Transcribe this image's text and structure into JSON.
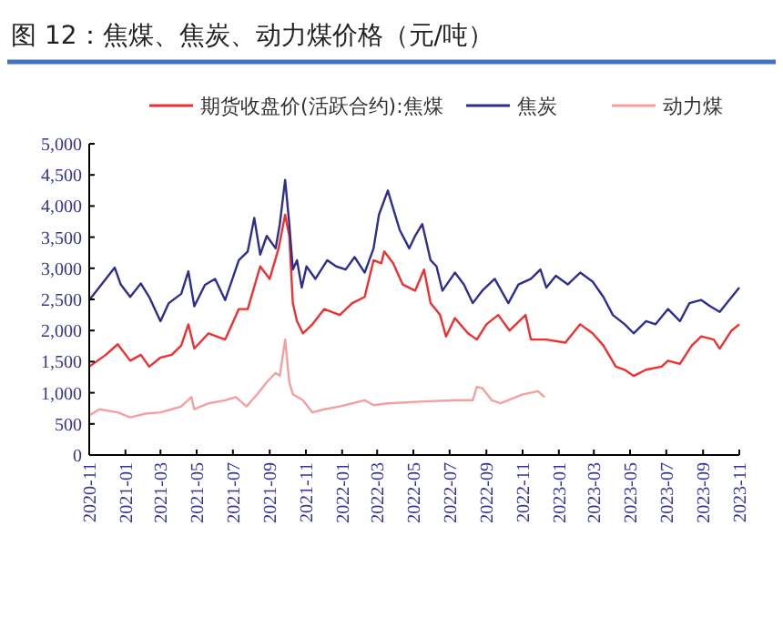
{
  "chart_data": {
    "type": "line",
    "title": "图 12：焦煤、焦炭、动力煤价格（元/吨）",
    "legend": "top",
    "grid": false,
    "line_style": "solid",
    "xlim": [
      "2020-11",
      "2023-11"
    ],
    "xticks": [
      "2020-11",
      "2021-01",
      "2021-03",
      "2021-05",
      "2021-07",
      "2021-09",
      "2021-11",
      "2022-01",
      "2022-03",
      "2022-05",
      "2022-07",
      "2022-09",
      "2022-11",
      "2023-01",
      "2023-03",
      "2023-05",
      "2023-07",
      "2023-09",
      "2023-11"
    ],
    "ylim": [
      0,
      5000
    ],
    "yticks": [
      {
        "value": 0,
        "label": "0"
      },
      {
        "value": 500,
        "label": "500"
      },
      {
        "value": 1000,
        "label": "1,000"
      },
      {
        "value": 1500,
        "label": "1,500"
      },
      {
        "value": 2000,
        "label": "2,000"
      },
      {
        "value": 2500,
        "label": "2,500"
      },
      {
        "value": 3000,
        "label": "3,000"
      },
      {
        "value": 3500,
        "label": "3,500"
      },
      {
        "value": 4000,
        "label": "4,000"
      },
      {
        "value": 4500,
        "label": "4,500"
      },
      {
        "value": 5000,
        "label": "5,000"
      }
    ],
    "series": [
      {
        "name": "期货收盘价(活跃合约):焦煤",
        "color": "#f03030",
        "x": [
          "2020-11-01",
          "2020-11-29",
          "2020-12-19",
          "2021-01-09",
          "2021-01-27",
          "2021-02-10",
          "2021-03-01",
          "2021-03-20",
          "2021-04-05",
          "2021-04-17",
          "2021-04-27",
          "2021-05-21",
          "2021-06-18",
          "2021-07-11",
          "2021-07-26",
          "2021-08-16",
          "2021-09-01",
          "2021-09-16",
          "2021-09-27",
          "2021-10-04",
          "2021-10-10",
          "2021-10-17",
          "2021-10-27",
          "2021-11-12",
          "2021-12-02",
          "2021-12-28",
          "2022-01-18",
          "2022-02-08",
          "2022-02-23",
          "2022-03-08",
          "2022-03-13",
          "2022-03-28",
          "2022-04-13",
          "2022-05-04",
          "2022-05-19",
          "2022-05-30",
          "2022-06-15",
          "2022-06-25",
          "2022-07-10",
          "2022-08-01",
          "2022-08-16",
          "2022-09-01",
          "2022-09-21",
          "2022-10-10",
          "2022-11-06",
          "2022-11-15",
          "2022-12-11",
          "2023-01-12",
          "2023-02-06",
          "2023-02-27",
          "2023-03-17",
          "2023-04-07",
          "2023-04-22",
          "2023-05-07",
          "2023-05-28",
          "2023-06-23",
          "2023-07-04",
          "2023-07-24",
          "2023-08-13",
          "2023-08-29",
          "2023-09-19",
          "2023-09-29",
          "2023-10-19",
          "2023-11-01"
        ],
        "values": [
          1420,
          1610,
          1780,
          1515,
          1610,
          1420,
          1565,
          1610,
          1760,
          2100,
          1710,
          1955,
          1855,
          2345,
          2345,
          3030,
          2830,
          3320,
          3860,
          3520,
          2440,
          2150,
          1955,
          2100,
          2345,
          2250,
          2440,
          2540,
          3130,
          3080,
          3270,
          3080,
          2740,
          2640,
          2980,
          2440,
          2250,
          1905,
          2200,
          1955,
          1855,
          2100,
          2250,
          2000,
          2250,
          1855,
          1855,
          1805,
          2100,
          1955,
          1760,
          1420,
          1370,
          1270,
          1370,
          1420,
          1515,
          1465,
          1760,
          1905,
          1855,
          1710,
          2000,
          2100
        ]
      },
      {
        "name": "焦炭",
        "color": "#2e2e8c",
        "x": [
          "2020-11-01",
          "2020-11-29",
          "2020-12-14",
          "2020-12-24",
          "2021-01-09",
          "2021-01-27",
          "2021-02-10",
          "2021-03-01",
          "2021-03-15",
          "2021-04-05",
          "2021-04-17",
          "2021-04-27",
          "2021-05-15",
          "2021-06-01",
          "2021-06-18",
          "2021-07-11",
          "2021-07-26",
          "2021-08-06",
          "2021-08-16",
          "2021-08-27",
          "2021-09-11",
          "2021-09-18",
          "2021-09-27",
          "2021-10-04",
          "2021-10-10",
          "2021-10-17",
          "2021-10-25",
          "2021-11-02",
          "2021-11-17",
          "2021-12-07",
          "2021-12-22",
          "2022-01-07",
          "2022-01-22",
          "2022-02-08",
          "2022-02-23",
          "2022-03-04",
          "2022-03-19",
          "2022-03-28",
          "2022-04-08",
          "2022-04-24",
          "2022-05-04",
          "2022-05-16",
          "2022-05-30",
          "2022-06-09",
          "2022-06-19",
          "2022-07-10",
          "2022-07-25",
          "2022-08-09",
          "2022-08-25",
          "2022-09-15",
          "2022-10-08",
          "2022-10-25",
          "2022-11-15",
          "2022-12-01",
          "2022-12-11",
          "2022-12-27",
          "2023-01-16",
          "2023-02-06",
          "2023-02-27",
          "2023-03-17",
          "2023-04-02",
          "2023-04-22",
          "2023-05-07",
          "2023-05-28",
          "2023-06-13",
          "2023-07-04",
          "2023-07-24",
          "2023-08-09",
          "2023-08-29",
          "2023-09-13",
          "2023-09-29",
          "2023-10-15",
          "2023-11-01"
        ],
        "values": [
          2490,
          2830,
          3010,
          2740,
          2540,
          2755,
          2540,
          2150,
          2440,
          2590,
          2950,
          2390,
          2735,
          2830,
          2490,
          3130,
          3270,
          3810,
          3220,
          3520,
          3320,
          3710,
          4420,
          3710,
          2980,
          3130,
          2690,
          3030,
          2830,
          3130,
          3030,
          2980,
          3180,
          2930,
          3320,
          3860,
          4250,
          3960,
          3615,
          3320,
          3520,
          3710,
          3130,
          3030,
          2640,
          2930,
          2740,
          2440,
          2640,
          2830,
          2440,
          2740,
          2830,
          2980,
          2690,
          2880,
          2740,
          2930,
          2785,
          2540,
          2250,
          2100,
          1955,
          2150,
          2100,
          2345,
          2150,
          2440,
          2490,
          2390,
          2300,
          2490,
          2690
        ]
      },
      {
        "name": "动力煤",
        "color": "#f4a0a0",
        "x": [
          "2020-11-01",
          "2020-11-18",
          "2020-12-19",
          "2021-01-09",
          "2021-02-04",
          "2021-03-01",
          "2021-03-20",
          "2021-04-05",
          "2021-04-22",
          "2021-04-27",
          "2021-05-21",
          "2021-06-18",
          "2021-07-06",
          "2021-07-24",
          "2021-08-11",
          "2021-08-27",
          "2021-09-11",
          "2021-09-18",
          "2021-09-27",
          "2021-10-04",
          "2021-10-10",
          "2021-10-27",
          "2021-11-12",
          "2021-12-02",
          "2021-12-28",
          "2022-01-18",
          "2022-02-08",
          "2022-02-23",
          "2022-03-19",
          "2022-05-19",
          "2022-07-10",
          "2022-08-09",
          "2022-08-16",
          "2022-08-25",
          "2022-09-10",
          "2022-09-25",
          "2022-11-01",
          "2022-11-27",
          "2022-12-08"
        ],
        "values": [
          635,
          735,
          685,
          605,
          665,
          685,
          735,
          780,
          930,
          735,
          830,
          880,
          930,
          780,
          975,
          1170,
          1320,
          1270,
          1855,
          1170,
          975,
          880,
          685,
          735,
          780,
          830,
          880,
          800,
          830,
          860,
          880,
          880,
          1095,
          1075,
          880,
          830,
          975,
          1025,
          930
        ]
      }
    ]
  }
}
